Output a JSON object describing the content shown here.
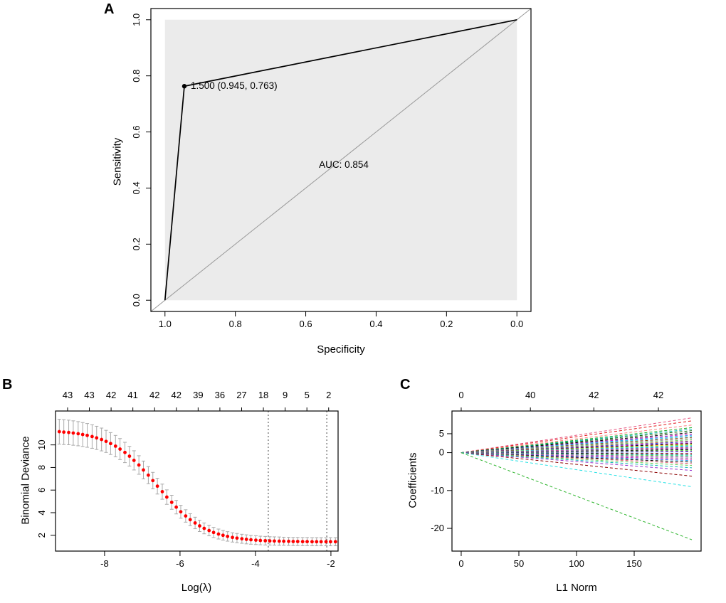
{
  "figure": {
    "panel_a_label": "A",
    "panel_b_label": "B",
    "panel_c_label": "C",
    "background": "#ffffff"
  },
  "chart_data": [
    {
      "id": "roc-curve",
      "type": "line",
      "title": "",
      "xlabel": "Specificity",
      "ylabel": "Sensitivity",
      "x_axis_reversed": true,
      "xlim": [
        1.04,
        -0.04
      ],
      "ylim": [
        -0.04,
        1.04
      ],
      "x_ticks": [
        1.0,
        0.8,
        0.6,
        0.4,
        0.2,
        0.0
      ],
      "x_tick_labels": [
        "1.0",
        "0.8",
        "0.6",
        "0.4",
        "0.2",
        "0.0"
      ],
      "y_ticks": [
        0.0,
        0.2,
        0.4,
        0.6,
        0.8,
        1.0
      ],
      "y_tick_labels": [
        "0.0",
        "0.2",
        "0.4",
        "0.6",
        "0.8",
        "1.0"
      ],
      "roc_points": [
        [
          1.0,
          0.0
        ],
        [
          0.945,
          0.763
        ],
        [
          0.0,
          1.0
        ]
      ],
      "marked_point": {
        "threshold": "1.500",
        "specificity": 0.945,
        "sensitivity": 0.763,
        "label": "1.500 (0.945, 0.763)"
      },
      "auc": 0.854,
      "auc_label": "AUC: 0.854",
      "diagonal_reference": true,
      "plot_bg": "#ebebeb",
      "curve_color": "#000000",
      "diagonal_color": "#999999"
    },
    {
      "id": "cv-binomial-deviance",
      "type": "scatter",
      "xlabel": "Log(λ)",
      "ylabel": "Binomial Deviance",
      "top_axis_labels": [
        "43",
        "43",
        "42",
        "41",
        "42",
        "42",
        "39",
        "36",
        "27",
        "18",
        "9",
        "5",
        "2"
      ],
      "top_label_range": [
        -8.98,
        -2.06
      ],
      "xlim": [
        -9.3,
        -1.81
      ],
      "ylim": [
        0.6,
        13
      ],
      "x_ticks": [
        -8,
        -6,
        -4,
        -2
      ],
      "x_tick_labels": [
        "-8",
        "-6",
        "-4",
        "-2"
      ],
      "y_ticks": [
        2,
        4,
        6,
        8,
        10
      ],
      "y_tick_labels": [
        "2",
        "4",
        "6",
        "8",
        "10"
      ],
      "vlines": [
        -3.66,
        -2.11
      ],
      "point_color": "#ff0000",
      "errorbar_color": "#a9a9a9",
      "points": [
        [
          -9.2,
          11.17,
          1.1
        ],
        [
          -9.08,
          11.13,
          1.1
        ],
        [
          -8.95,
          11.1,
          1.09
        ],
        [
          -8.83,
          11.05,
          1.08
        ],
        [
          -8.7,
          10.99,
          1.07
        ],
        [
          -8.58,
          10.92,
          1.06
        ],
        [
          -8.46,
          10.84,
          1.05
        ],
        [
          -8.33,
          10.74,
          1.04
        ],
        [
          -8.21,
          10.62,
          1.03
        ],
        [
          -8.08,
          10.48,
          1.01
        ],
        [
          -7.96,
          10.31,
          0.98
        ],
        [
          -7.84,
          10.12,
          0.97
        ],
        [
          -7.71,
          9.89,
          0.95
        ],
        [
          -7.59,
          9.63,
          0.93
        ],
        [
          -7.46,
          9.33,
          0.9
        ],
        [
          -7.34,
          9.0,
          0.87
        ],
        [
          -7.22,
          8.63,
          0.85
        ],
        [
          -7.09,
          8.22,
          0.82
        ],
        [
          -6.97,
          7.78,
          0.79
        ],
        [
          -6.84,
          7.32,
          0.76
        ],
        [
          -6.72,
          6.84,
          0.73
        ],
        [
          -6.6,
          6.35,
          0.7
        ],
        [
          -6.47,
          5.86,
          0.67
        ],
        [
          -6.35,
          5.38,
          0.64
        ],
        [
          -6.22,
          4.92,
          0.62
        ],
        [
          -6.1,
          4.49,
          0.6
        ],
        [
          -5.98,
          4.08,
          0.57
        ],
        [
          -5.85,
          3.71,
          0.55
        ],
        [
          -5.73,
          3.38,
          0.53
        ],
        [
          -5.6,
          3.09,
          0.51
        ],
        [
          -5.48,
          2.83,
          0.5
        ],
        [
          -5.36,
          2.61,
          0.48
        ],
        [
          -5.23,
          2.42,
          0.47
        ],
        [
          -5.11,
          2.25,
          0.45
        ],
        [
          -4.98,
          2.11,
          0.44
        ],
        [
          -4.86,
          2.0,
          0.43
        ],
        [
          -4.74,
          1.9,
          0.42
        ],
        [
          -4.61,
          1.81,
          0.41
        ],
        [
          -4.49,
          1.75,
          0.41
        ],
        [
          -4.36,
          1.69,
          0.4
        ],
        [
          -4.24,
          1.64,
          0.4
        ],
        [
          -4.12,
          1.6,
          0.39
        ],
        [
          -3.99,
          1.57,
          0.39
        ],
        [
          -3.87,
          1.54,
          0.38
        ],
        [
          -3.74,
          1.52,
          0.38
        ],
        [
          -3.62,
          1.5,
          0.37
        ],
        [
          -3.5,
          1.49,
          0.37
        ],
        [
          -3.37,
          1.48,
          0.37
        ],
        [
          -3.25,
          1.47,
          0.36
        ],
        [
          -3.12,
          1.46,
          0.36
        ],
        [
          -3.0,
          1.45,
          0.36
        ],
        [
          -2.88,
          1.45,
          0.36
        ],
        [
          -2.75,
          1.44,
          0.36
        ],
        [
          -2.63,
          1.44,
          0.36
        ],
        [
          -2.5,
          1.43,
          0.36
        ],
        [
          -2.38,
          1.43,
          0.36
        ],
        [
          -2.26,
          1.43,
          0.36
        ],
        [
          -2.13,
          1.43,
          0.36
        ],
        [
          -2.01,
          1.43,
          0.36
        ],
        [
          -1.88,
          1.43,
          0.36
        ]
      ]
    },
    {
      "id": "lasso-coefficient-paths",
      "type": "line",
      "xlabel": "L1 Norm",
      "ylabel": "Coefficients",
      "top_axis": {
        "positions": [
          0,
          60,
          115,
          171
        ],
        "labels": [
          "0",
          "40",
          "42",
          "42"
        ]
      },
      "xlim": [
        -8,
        208
      ],
      "ylim": [
        -26,
        11
      ],
      "x_ticks": [
        0,
        50,
        100,
        150
      ],
      "x_tick_labels": [
        "0",
        "50",
        "100",
        "150"
      ],
      "y_ticks": [
        -20,
        -10,
        0,
        5
      ],
      "y_tick_labels": [
        "-20",
        "-10",
        "0",
        "5"
      ],
      "x_start": 0,
      "x_end": 200,
      "lines": [
        {
          "end": 9.2,
          "color": "#e75480"
        },
        {
          "end": 8.4,
          "color": "#e31a1c"
        },
        {
          "end": 7.3,
          "color": "#ff7f7f"
        },
        {
          "end": 6.6,
          "color": "#1fa81f"
        },
        {
          "end": 6.2,
          "color": "#0bb5b5"
        },
        {
          "end": 5.8,
          "color": "#006400"
        },
        {
          "end": 5.3,
          "color": "#000000"
        },
        {
          "end": 4.9,
          "color": "#cd0bbc"
        },
        {
          "end": 4.6,
          "color": "#2297e6"
        },
        {
          "end": 4.3,
          "color": "#28c7e5"
        },
        {
          "end": 4.0,
          "color": "#8b4513"
        },
        {
          "end": 3.7,
          "color": "#9e9e9e"
        },
        {
          "end": 3.4,
          "color": "#61d04f"
        },
        {
          "end": 3.1,
          "color": "#df536b"
        },
        {
          "end": 2.9,
          "color": "#2255cc"
        },
        {
          "end": 2.6,
          "color": "#cd0bbc"
        },
        {
          "end": 2.4,
          "color": "#000000"
        },
        {
          "end": 2.2,
          "color": "#f5c710"
        },
        {
          "end": 2.0,
          "color": "#61d04f"
        },
        {
          "end": 1.8,
          "color": "#28e2e5"
        },
        {
          "end": 1.6,
          "color": "#2297e6"
        },
        {
          "end": 1.4,
          "color": "#df536b"
        },
        {
          "end": 1.2,
          "color": "#9932cc"
        },
        {
          "end": 1.0,
          "color": "#9e9e9e"
        },
        {
          "end": 0.8,
          "color": "#000000"
        },
        {
          "end": 0.6,
          "color": "#61d04f"
        },
        {
          "end": 0.4,
          "color": "#cd0bbc"
        },
        {
          "end": 0.2,
          "color": "#2297e6"
        },
        {
          "end": -0.2,
          "color": "#df536b"
        },
        {
          "end": -0.4,
          "color": "#000000"
        },
        {
          "end": -0.7,
          "color": "#28e2e5"
        },
        {
          "end": -0.9,
          "color": "#61d04f"
        },
        {
          "end": -1.2,
          "color": "#9932cc"
        },
        {
          "end": -1.5,
          "color": "#9e9e9e"
        },
        {
          "end": -1.8,
          "color": "#cd0bbc"
        },
        {
          "end": -2.1,
          "color": "#2297e6"
        },
        {
          "end": -2.5,
          "color": "#000000"
        },
        {
          "end": -2.9,
          "color": "#df536b"
        },
        {
          "end": -3.4,
          "color": "#61d04f"
        },
        {
          "end": -4.0,
          "color": "#0bb5b5"
        },
        {
          "end": -4.7,
          "color": "#9932cc"
        },
        {
          "end": -6.2,
          "color": "#8b0000"
        },
        {
          "end": -9.0,
          "color": "#28e2e5"
        },
        {
          "end": -23.0,
          "color": "#2db52d"
        }
      ]
    }
  ]
}
